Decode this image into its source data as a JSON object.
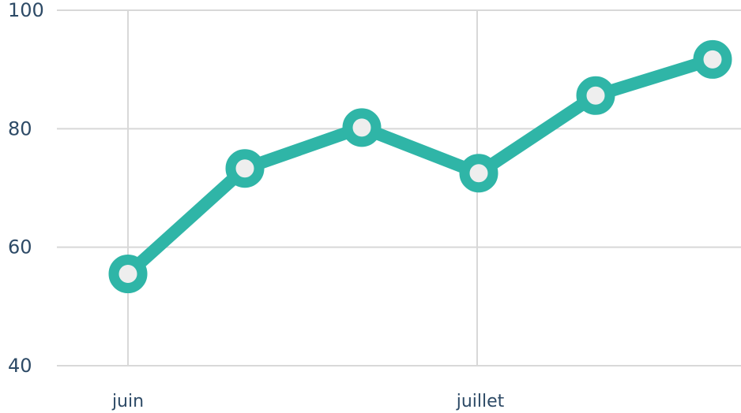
{
  "chart_data": {
    "type": "line",
    "x": [
      "juin",
      "",
      "",
      "juillet",
      "",
      ""
    ],
    "x_tick_labels": [
      "juin",
      "juillet"
    ],
    "series": [
      {
        "values": [
          55.5,
          73.3,
          80.2,
          72.5,
          85.6,
          91.7
        ]
      }
    ],
    "ylim": [
      40,
      100
    ],
    "y_ticks": [
      40,
      60,
      80,
      100
    ],
    "grid": true,
    "colors": {
      "line": "#2fb5a7",
      "marker_fill": "#eeeeee",
      "grid": "#d8d8d8",
      "tick_text": "#2d4a66"
    }
  }
}
